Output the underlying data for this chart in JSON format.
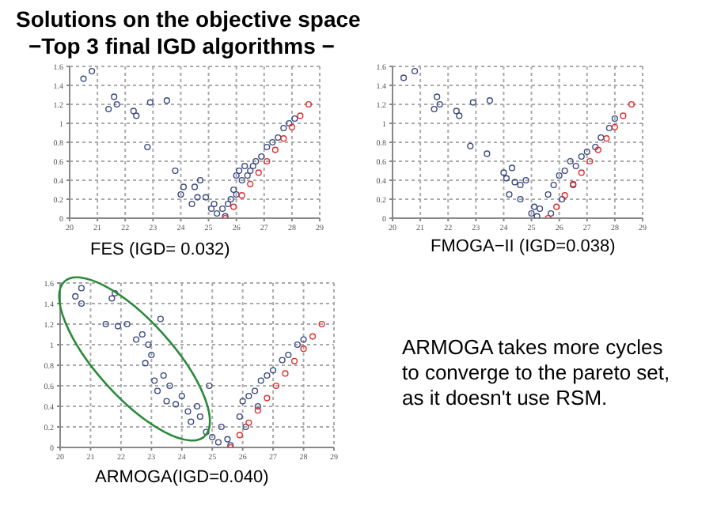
{
  "chart_data": [
    {
      "type": "other",
      "title": "Solutions on the objective space",
      "subtitle": "−Top 3 final IGD algorithms −"
    },
    {
      "type": "scatter",
      "title": "FES (IGD= 0.032)",
      "xlim": [
        20,
        29
      ],
      "xticks": [
        20,
        21,
        22,
        23,
        24,
        25,
        26,
        27,
        28,
        29
      ],
      "ylim": [
        0,
        1.6
      ],
      "yticks": [
        0,
        0.2,
        0.4,
        0.6,
        0.8,
        1,
        1.2,
        1.4,
        1.6
      ],
      "grid": true,
      "marker": "circle",
      "series": [
        {
          "color": "#3c4a80",
          "x": [
            20.5,
            20.8,
            21.4,
            21.6,
            21.7,
            22.3,
            22.4,
            22.8,
            22.9,
            23.5,
            23.8,
            24.0,
            24.1,
            24.4,
            24.5,
            24.6,
            24.7,
            24.9,
            25.2,
            25.1,
            25.3,
            25.6,
            25.5,
            25.7,
            25.9,
            26.0,
            26.1,
            26.2,
            26.3,
            26.5,
            26.7,
            26.9,
            27.1,
            27.3,
            27.5,
            27.7,
            27.9,
            28.1,
            25.8,
            26.0,
            26.4,
            26.6
          ],
          "values": [
            1.47,
            1.55,
            1.15,
            1.28,
            1.2,
            1.13,
            1.08,
            0.75,
            1.22,
            1.24,
            0.5,
            0.25,
            0.33,
            0.15,
            0.33,
            0.22,
            0.4,
            0.22,
            0.15,
            0.1,
            0.05,
            0.02,
            0.1,
            0.15,
            0.3,
            0.45,
            0.5,
            0.4,
            0.55,
            0.5,
            0.6,
            0.65,
            0.75,
            0.8,
            0.85,
            0.95,
            1.0,
            1.05,
            0.2,
            0.25,
            0.45,
            0.55
          ]
        },
        {
          "color": "#e03030",
          "x": [
            25.6,
            25.9,
            26.2,
            26.5,
            26.8,
            27.1,
            27.4,
            27.7,
            28.0,
            28.3,
            28.6
          ],
          "values": [
            0,
            0.12,
            0.24,
            0.36,
            0.48,
            0.6,
            0.72,
            0.84,
            0.96,
            1.08,
            1.2
          ]
        }
      ]
    },
    {
      "type": "scatter",
      "title": "FMOGA−II (IGD=0.038)",
      "xlim": [
        20,
        29
      ],
      "xticks": [
        20,
        21,
        22,
        23,
        24,
        25,
        26,
        27,
        28,
        29
      ],
      "ylim": [
        0,
        1.6
      ],
      "yticks": [
        0,
        0.2,
        0.4,
        0.6,
        0.8,
        1,
        1.2,
        1.4,
        1.6
      ],
      "grid": true,
      "marker": "circle",
      "series": [
        {
          "color": "#3c4a80",
          "x": [
            20.4,
            20.8,
            21.5,
            21.6,
            21.7,
            22.3,
            22.4,
            22.8,
            22.9,
            23.5,
            23.4,
            24.0,
            24.1,
            24.3,
            24.2,
            24.4,
            24.6,
            24.6,
            24.8,
            25.0,
            25.1,
            25.3,
            25.2,
            25.6,
            25.8,
            26.0,
            26.2,
            26.4,
            26.6,
            26.8,
            27.0,
            27.3,
            27.5,
            27.8,
            28.0,
            25.7,
            26.1,
            26.5
          ],
          "values": [
            1.48,
            1.55,
            1.15,
            1.28,
            1.2,
            1.13,
            1.08,
            0.76,
            1.22,
            1.24,
            0.68,
            0.48,
            0.42,
            0.53,
            0.25,
            0.38,
            0.35,
            0.2,
            0.4,
            0.05,
            0.12,
            0.1,
            0.02,
            0.25,
            0.35,
            0.45,
            0.5,
            0.6,
            0.55,
            0.65,
            0.7,
            0.75,
            0.85,
            0.95,
            1.05,
            0.05,
            0.2,
            0.35
          ]
        },
        {
          "color": "#e03030",
          "x": [
            25.6,
            25.9,
            26.2,
            26.5,
            26.8,
            27.1,
            27.4,
            27.7,
            28.0,
            28.3,
            28.6
          ],
          "values": [
            0,
            0.12,
            0.24,
            0.36,
            0.48,
            0.6,
            0.72,
            0.84,
            0.96,
            1.08,
            1.2
          ]
        }
      ]
    },
    {
      "type": "scatter",
      "title": "ARMOGA(IGD=0.040)",
      "xlim": [
        20,
        29
      ],
      "xticks": [
        20,
        21,
        22,
        23,
        24,
        25,
        26,
        27,
        28,
        29
      ],
      "ylim": [
        0,
        1.6
      ],
      "yticks": [
        0,
        0.2,
        0.4,
        0.6,
        0.8,
        1,
        1.2,
        1.4,
        1.6
      ],
      "grid": true,
      "marker": "circle",
      "series": [
        {
          "color": "#3c4a80",
          "x": [
            20.5,
            20.7,
            20.7,
            21.7,
            21.8,
            21.5,
            21.9,
            22.2,
            22.5,
            22.7,
            22.8,
            22.9,
            23.0,
            23.1,
            23.2,
            23.3,
            23.4,
            23.5,
            23.6,
            23.8,
            24.0,
            24.2,
            24.3,
            24.5,
            24.6,
            24.8,
            24.9,
            25.0,
            25.2,
            25.3,
            25.5,
            25.6,
            25.9,
            26.0,
            26.2,
            26.4,
            26.6,
            26.8,
            27.0,
            27.3,
            27.5,
            27.8,
            28.0,
            26.1,
            26.5
          ],
          "values": [
            1.47,
            1.55,
            1.4,
            1.45,
            1.5,
            1.2,
            1.18,
            1.2,
            1.05,
            1.1,
            0.82,
            1.0,
            0.9,
            0.65,
            0.55,
            1.25,
            0.7,
            0.45,
            0.6,
            0.42,
            0.5,
            0.35,
            0.25,
            0.4,
            0.3,
            0.15,
            0.6,
            0.1,
            0.05,
            0.2,
            0.08,
            0.02,
            0.3,
            0.45,
            0.5,
            0.55,
            0.65,
            0.7,
            0.75,
            0.85,
            0.9,
            1.0,
            1.05,
            0.2,
            0.4
          ]
        },
        {
          "color": "#e03030",
          "x": [
            25.6,
            25.9,
            26.2,
            26.5,
            26.8,
            27.1,
            27.4,
            27.7,
            28.0,
            28.3,
            28.6
          ],
          "values": [
            0,
            0.12,
            0.24,
            0.36,
            0.48,
            0.6,
            0.72,
            0.84,
            0.96,
            1.08,
            1.2
          ]
        }
      ]
    },
    {
      "type": "other",
      "annotations": [
        "ARMOGA takes more cycles",
        "to converge to the pareto set,",
        "as it doesn't use RSM."
      ]
    }
  ]
}
